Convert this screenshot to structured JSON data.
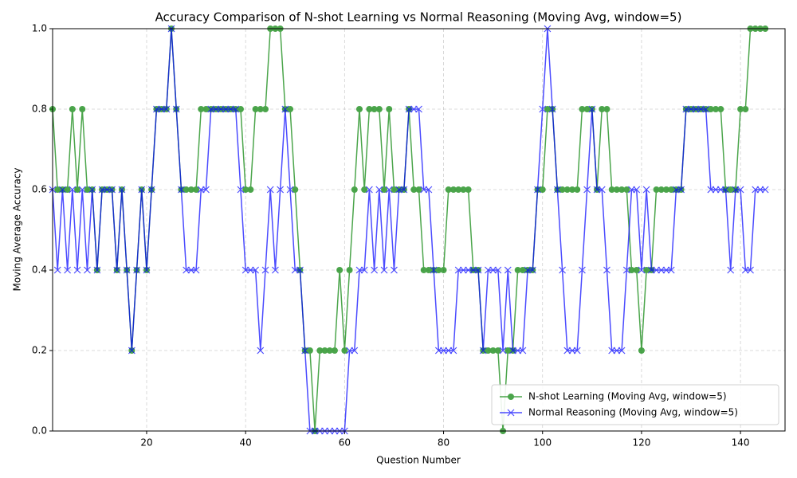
{
  "chart_data": {
    "type": "line",
    "title": "Accuracy Comparison of N-shot Learning vs Normal Reasoning (Moving Avg, window=5)",
    "x_label": "Question Number",
    "y_label": "Moving Average Accuracy",
    "x": [
      1,
      2,
      3,
      4,
      5,
      6,
      7,
      8,
      9,
      10,
      11,
      12,
      13,
      14,
      15,
      16,
      17,
      18,
      19,
      20,
      21,
      22,
      23,
      24,
      25,
      26,
      27,
      28,
      29,
      30,
      31,
      32,
      33,
      34,
      35,
      36,
      37,
      38,
      39,
      40,
      41,
      42,
      43,
      44,
      45,
      46,
      47,
      48,
      49,
      50,
      51,
      52,
      53,
      54,
      55,
      56,
      57,
      58,
      59,
      60,
      61,
      62,
      63,
      64,
      65,
      66,
      67,
      68,
      69,
      70,
      71,
      72,
      73,
      74,
      75,
      76,
      77,
      78,
      79,
      80,
      81,
      82,
      83,
      84,
      85,
      86,
      87,
      88,
      89,
      90,
      91,
      92,
      93,
      94,
      95,
      96,
      97,
      98,
      99,
      100,
      101,
      102,
      103,
      104,
      105,
      106,
      107,
      108,
      109,
      110,
      111,
      112,
      113,
      114,
      115,
      116,
      117,
      118,
      119,
      120,
      121,
      122,
      123,
      124,
      125,
      126,
      127,
      128,
      129,
      130,
      131,
      132,
      133,
      134,
      135,
      136,
      137,
      138,
      139,
      140,
      141,
      142,
      143,
      144,
      145
    ],
    "series": [
      {
        "name": "N-shot Learning (Moving Avg, window=5)",
        "color": "#008000",
        "marker": "o",
        "values": [
          0.8,
          0.6,
          0.6,
          0.6,
          0.8,
          0.6,
          0.8,
          0.6,
          0.6,
          0.4,
          0.6,
          0.6,
          0.6,
          0.4,
          0.6,
          0.4,
          0.2,
          0.4,
          0.6,
          0.4,
          0.6,
          0.8,
          0.8,
          0.8,
          1.0,
          0.8,
          0.6,
          0.6,
          0.6,
          0.6,
          0.8,
          0.8,
          0.8,
          0.8,
          0.8,
          0.8,
          0.8,
          0.8,
          0.8,
          0.6,
          0.6,
          0.8,
          0.8,
          0.8,
          1.0,
          1.0,
          1.0,
          0.8,
          0.8,
          0.6,
          0.4,
          0.2,
          0.2,
          0.0,
          0.2,
          0.2,
          0.2,
          0.2,
          0.4,
          0.2,
          0.4,
          0.6,
          0.8,
          0.6,
          0.8,
          0.8,
          0.8,
          0.6,
          0.8,
          0.6,
          0.6,
          0.6,
          0.8,
          0.6,
          0.6,
          0.4,
          0.4,
          0.4,
          0.4,
          0.4,
          0.6,
          0.6,
          0.6,
          0.6,
          0.6,
          0.4,
          0.4,
          0.2,
          0.2,
          0.2,
          0.2,
          0.0,
          0.2,
          0.2,
          0.4,
          0.4,
          0.4,
          0.4,
          0.6,
          0.6,
          0.8,
          0.8,
          0.6,
          0.6,
          0.6,
          0.6,
          0.6,
          0.8,
          0.8,
          0.8,
          0.6,
          0.8,
          0.8,
          0.6,
          0.6,
          0.6,
          0.6,
          0.4,
          0.4,
          0.2,
          0.4,
          0.4,
          0.6,
          0.6,
          0.6,
          0.6,
          0.6,
          0.6,
          0.8,
          0.8,
          0.8,
          0.8,
          0.8,
          0.8,
          0.8,
          0.8,
          0.6,
          0.6,
          0.6,
          0.8,
          0.8,
          1.0,
          1.0,
          1.0,
          1.0
        ]
      },
      {
        "name": "Normal Reasoning (Moving Avg, window=5)",
        "color": "#0000ff",
        "marker": "x",
        "values": [
          0.6,
          0.4,
          0.6,
          0.4,
          0.6,
          0.4,
          0.6,
          0.4,
          0.6,
          0.4,
          0.6,
          0.6,
          0.6,
          0.4,
          0.6,
          0.4,
          0.2,
          0.4,
          0.6,
          0.4,
          0.6,
          0.8,
          0.8,
          0.8,
          1.0,
          0.8,
          0.6,
          0.4,
          0.4,
          0.4,
          0.6,
          0.6,
          0.8,
          0.8,
          0.8,
          0.8,
          0.8,
          0.8,
          0.6,
          0.4,
          0.4,
          0.4,
          0.2,
          0.4,
          0.6,
          0.4,
          0.6,
          0.8,
          0.6,
          0.4,
          0.4,
          0.2,
          0.0,
          0.0,
          0.0,
          0.0,
          0.0,
          0.0,
          0.0,
          0.0,
          0.2,
          0.2,
          0.4,
          0.4,
          0.6,
          0.4,
          0.6,
          0.4,
          0.6,
          0.4,
          0.6,
          0.6,
          0.8,
          0.8,
          0.8,
          0.6,
          0.6,
          0.4,
          0.2,
          0.2,
          0.2,
          0.2,
          0.4,
          0.4,
          0.4,
          0.4,
          0.4,
          0.2,
          0.4,
          0.4,
          0.4,
          0.2,
          0.4,
          0.2,
          0.2,
          0.2,
          0.4,
          0.4,
          0.6,
          0.8,
          1.0,
          0.8,
          0.6,
          0.4,
          0.2,
          0.2,
          0.2,
          0.4,
          0.6,
          0.8,
          0.6,
          0.6,
          0.4,
          0.2,
          0.2,
          0.2,
          0.4,
          0.6,
          0.6,
          0.4,
          0.6,
          0.4,
          0.4,
          0.4,
          0.4,
          0.4,
          0.6,
          0.6,
          0.8,
          0.8,
          0.8,
          0.8,
          0.8,
          0.6,
          0.6,
          0.6,
          0.6,
          0.4,
          0.6,
          0.6,
          0.4,
          0.4,
          0.6,
          0.6,
          0.6
        ]
      }
    ],
    "xlim": [
      1,
      149
    ],
    "xticks": [
      20,
      40,
      60,
      80,
      100,
      120,
      140
    ],
    "ylim": [
      0,
      1
    ],
    "yticks": [
      {
        "value": 0,
        "label": "0.0"
      },
      0.2,
      0.4,
      0.6,
      0.8,
      {
        "value": 1,
        "label": "1.0"
      }
    ],
    "grid": true,
    "legend": "lower right"
  }
}
